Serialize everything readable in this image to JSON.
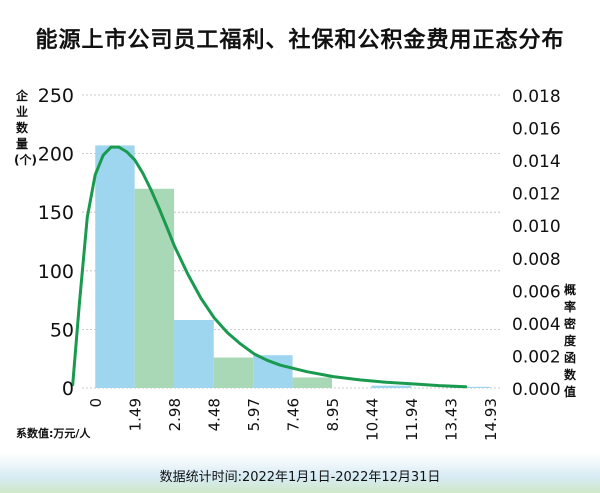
{
  "chart_data": {
    "type": "bar",
    "title": "能源上市公司员工福利、社保和公积金费用正态分布",
    "ylabel_left": "企业数量(个)",
    "ylabel_right": "概率密度函数值",
    "x_unit_label": "系数值:万元/人",
    "x_ticks": [
      "0",
      "1.49",
      "2.98",
      "4.48",
      "5.97",
      "7.46",
      "8.95",
      "10.44",
      "11.94",
      "13.43",
      "14.93"
    ],
    "y_left_ticks": [
      "0",
      "50",
      "100",
      "150",
      "200",
      "250"
    ],
    "y_right_ticks": [
      "0.000",
      "0.002",
      "0.004",
      "0.006",
      "0.008",
      "0.010",
      "0.012",
      "0.014",
      "0.016",
      "0.018"
    ],
    "ylim_left": [
      0,
      250
    ],
    "ylim_right": [
      0,
      0.018
    ],
    "xlim": [
      -0.5,
      15.3
    ],
    "bars": [
      {
        "x0": 0.0,
        "x1": 1.49,
        "value": 207,
        "color": "#9ed6ef"
      },
      {
        "x0": 1.49,
        "x1": 2.98,
        "value": 170,
        "color": "#a8d8b5"
      },
      {
        "x0": 2.98,
        "x1": 4.48,
        "value": 58,
        "color": "#9ed6ef"
      },
      {
        "x0": 4.48,
        "x1": 5.97,
        "value": 26,
        "color": "#a8d8b5"
      },
      {
        "x0": 5.97,
        "x1": 7.46,
        "value": 28,
        "color": "#9ed6ef"
      },
      {
        "x0": 7.46,
        "x1": 8.95,
        "value": 9,
        "color": "#a8d8b5"
      },
      {
        "x0": 10.44,
        "x1": 11.94,
        "value": 2,
        "color": "#9ed6ef"
      },
      {
        "x0": 13.43,
        "x1": 14.93,
        "value": 1,
        "color": "#9ed6ef"
      }
    ],
    "curve": {
      "color": "#1a9a4f",
      "points": [
        [
          -0.85,
          0.0002
        ],
        [
          -0.6,
          0.0052
        ],
        [
          -0.3,
          0.0105
        ],
        [
          0.0,
          0.0131
        ],
        [
          0.3,
          0.0143
        ],
        [
          0.6,
          0.0148
        ],
        [
          0.9,
          0.0148
        ],
        [
          1.2,
          0.0145
        ],
        [
          1.5,
          0.014
        ],
        [
          1.8,
          0.0132
        ],
        [
          2.1,
          0.0122
        ],
        [
          2.4,
          0.0111
        ],
        [
          2.7,
          0.0099
        ],
        [
          3.0,
          0.0087
        ],
        [
          3.5,
          0.007
        ],
        [
          4.0,
          0.0055
        ],
        [
          4.5,
          0.0043
        ],
        [
          5.0,
          0.0034
        ],
        [
          5.5,
          0.0027
        ],
        [
          6.0,
          0.0021
        ],
        [
          6.5,
          0.0017
        ],
        [
          7.0,
          0.0014
        ],
        [
          8.0,
          0.001
        ],
        [
          9.0,
          0.0007
        ],
        [
          10.0,
          0.0005
        ],
        [
          11.0,
          0.00035
        ],
        [
          12.0,
          0.00025
        ],
        [
          13.0,
          0.00015
        ],
        [
          14.0,
          8e-05
        ]
      ]
    },
    "footer": "数据统计时间:2022年1月1日-2022年12月31日"
  }
}
